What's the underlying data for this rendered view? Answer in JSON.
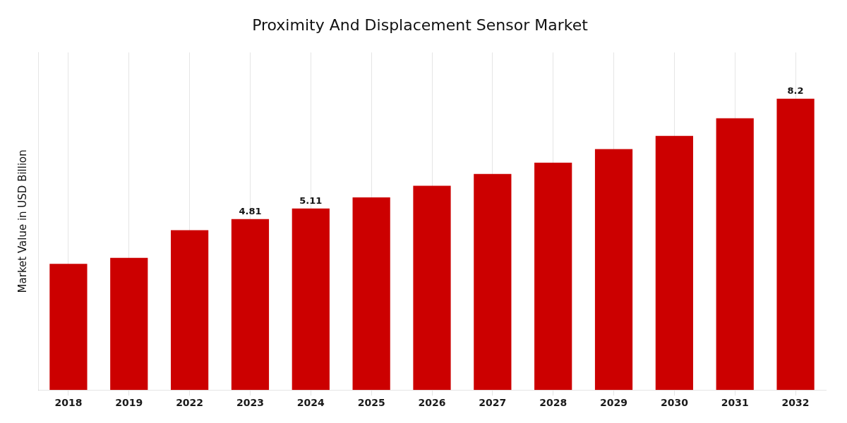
{
  "chart_data": {
    "type": "bar",
    "title": "Proximity And Displacement Sensor Market",
    "y_label": "Market Value in USD Billion",
    "categories": [
      "2018",
      "2019",
      "2022",
      "2023",
      "2024",
      "2025",
      "2026",
      "2027",
      "2028",
      "2029",
      "2030",
      "2031",
      "2032"
    ],
    "values": [
      3.55,
      3.72,
      4.5,
      4.81,
      5.11,
      5.42,
      5.75,
      6.08,
      6.4,
      6.78,
      7.15,
      7.65,
      8.2
    ],
    "value_labels": [
      null,
      null,
      null,
      "4.81",
      "5.11",
      null,
      null,
      null,
      null,
      null,
      null,
      null,
      "8.2"
    ],
    "color": "#CC0000",
    "ylim": [
      0,
      9.5
    ],
    "grid": "x",
    "tick_labels": "x"
  }
}
